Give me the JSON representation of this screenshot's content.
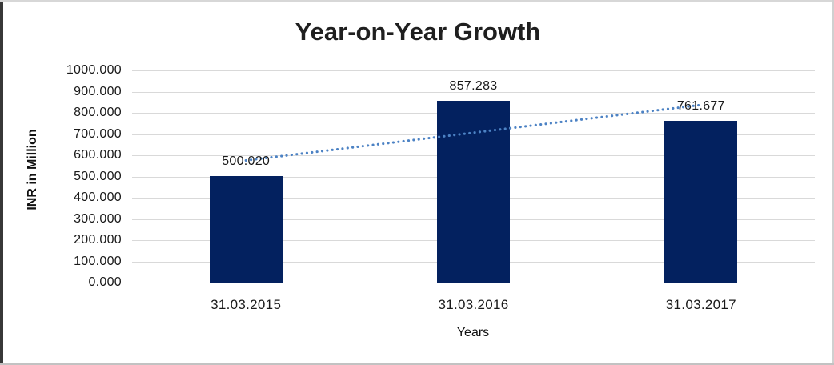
{
  "title": "Year-on-Year Growth",
  "chart_data": {
    "type": "bar",
    "title": "Year-on-Year Growth",
    "categories": [
      "31.03.2015",
      "31.03.2016",
      "31.03.2017"
    ],
    "values": [
      500.02,
      857.283,
      761.677
    ],
    "data_labels": [
      "500.020",
      "857.283",
      "761.677"
    ],
    "xlabel": "Years",
    "ylabel": "INR in Million",
    "ylim": [
      0,
      1000
    ],
    "ytick_values": [
      0,
      100,
      200,
      300,
      400,
      500,
      600,
      700,
      800,
      900,
      1000
    ],
    "ytick_labels": [
      "0.000",
      "100.000",
      "200.000",
      "300.000",
      "400.000",
      "500.000",
      "600.000",
      "700.000",
      "800.000",
      "900.000",
      "1000.000"
    ],
    "grid": true,
    "legend_position": "none",
    "trendline": {
      "type": "linear",
      "style": "dotted",
      "start_value": 575.5,
      "end_value": 837.2
    },
    "colors": {
      "bar": "#03215F",
      "trendline": "#4C82C4",
      "gridline": "#D9D9D9",
      "text": "#1A1A1A"
    }
  }
}
